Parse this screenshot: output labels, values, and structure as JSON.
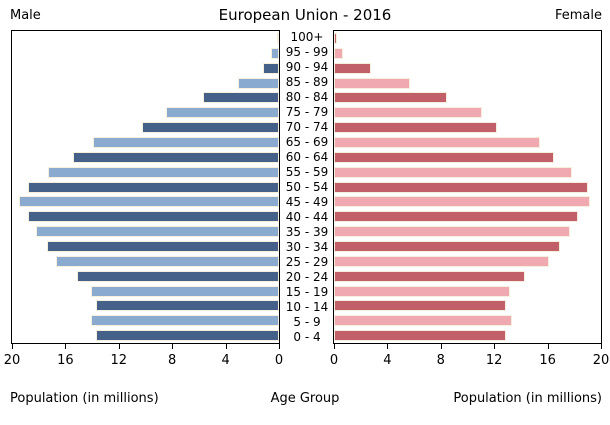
{
  "header": {
    "left_label": "Male",
    "title": "European Union - 2016",
    "right_label": "Female"
  },
  "axes": {
    "male_ticks": [
      "20",
      "16",
      "12",
      "8",
      "4",
      "0"
    ],
    "female_ticks": [
      "0",
      "4",
      "8",
      "12",
      "16",
      "20"
    ],
    "male_axis_label": "Population (in millions)",
    "center_axis_label": "Age Group",
    "female_axis_label": "Population (in millions)"
  },
  "chart_data": {
    "type": "bar",
    "subtype": "population-pyramid",
    "title": "European Union - 2016",
    "xlabel_left": "Population (in millions)",
    "xlabel_right": "Population (in millions)",
    "center_label": "Age Group",
    "xlim": [
      0,
      20
    ],
    "grid": false,
    "orientation": "horizontal",
    "display_order": "oldest-at-top",
    "categories": [
      "0 - 4",
      "5 - 9",
      "10 - 14",
      "15 - 19",
      "20 - 24",
      "25 - 29",
      "30 - 34",
      "35 - 39",
      "40 - 44",
      "45 - 49",
      "50 - 54",
      "55 - 59",
      "60 - 64",
      "65 - 69",
      "70 - 74",
      "75 - 79",
      "80 - 84",
      "85 - 89",
      "90 - 94",
      "95 - 99",
      "100+"
    ],
    "series": [
      {
        "name": "Male",
        "values": [
          13.7,
          14.1,
          13.7,
          14.1,
          15.1,
          16.7,
          17.4,
          18.2,
          18.8,
          19.5,
          18.8,
          17.3,
          15.4,
          13.9,
          10.3,
          8.5,
          5.7,
          3.1,
          1.2,
          0.6,
          0.1
        ]
      },
      {
        "name": "Female",
        "values": [
          12.9,
          13.3,
          12.9,
          13.2,
          14.3,
          16.1,
          16.9,
          17.7,
          18.3,
          19.2,
          19.0,
          17.8,
          16.5,
          15.4,
          12.2,
          11.1,
          8.5,
          5.7,
          2.8,
          0.7,
          0.2
        ]
      }
    ],
    "colors": {
      "male_dark": "#45618a",
      "male_light": "#8aaad0",
      "female_dark": "#c2606a",
      "female_light": "#f0a9b0",
      "bar_edge": "#f6efdc",
      "axis": "#000000",
      "background": "#ffffff"
    }
  }
}
